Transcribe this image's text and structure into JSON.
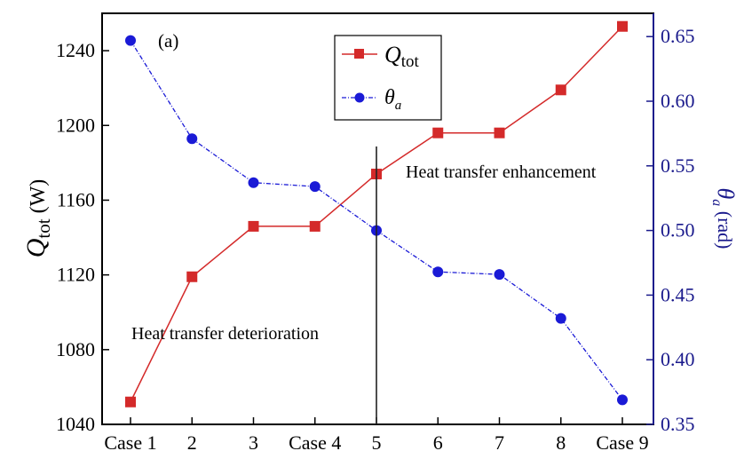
{
  "chart_data": {
    "type": "line",
    "panel_label": "(a)",
    "categories": [
      "Case 1",
      "2",
      "3",
      "Case 4",
      "5",
      "6",
      "7",
      "8",
      "Case 9"
    ],
    "series": [
      {
        "name": "Q_tot",
        "axis": "left",
        "color": "#d42a2a",
        "marker": "square",
        "values": [
          1052,
          1119,
          1146,
          1146,
          1174,
          1196,
          1196,
          1219,
          1253
        ]
      },
      {
        "name": "θ_a",
        "axis": "right",
        "color": "#1a1ad6",
        "marker": "circle",
        "values": [
          0.647,
          0.571,
          0.537,
          0.534,
          0.5,
          0.468,
          0.466,
          0.432,
          0.369
        ]
      }
    ],
    "ylim_left": [
      1040,
      1260
    ],
    "yticks_left": [
      "1040",
      "1080",
      "1120",
      "1160",
      "1200",
      "1240"
    ],
    "ylim_right": [
      0.35,
      0.668
    ],
    "yticks_right": [
      "0.35",
      "0.40",
      "0.45",
      "0.50",
      "0.55",
      "0.60",
      "0.65"
    ],
    "ylabel_left": {
      "main": "Q",
      "sub": "tot",
      "unit": " (W)"
    },
    "ylabel_right": {
      "main": "θ",
      "sub": "a",
      "unit": " (rad)"
    },
    "legend": {
      "placement": "top-center",
      "entries": [
        {
          "main": "Q",
          "sub": "tot"
        },
        {
          "main": "θ",
          "sub": "a"
        }
      ]
    },
    "divider_at_category": "5",
    "annotations": {
      "right": "Heat transfer enhancement",
      "left": "Heat transfer deterioration"
    },
    "colors": {
      "left_axis": "#000000",
      "right_axis": "#1a1a8c"
    }
  }
}
